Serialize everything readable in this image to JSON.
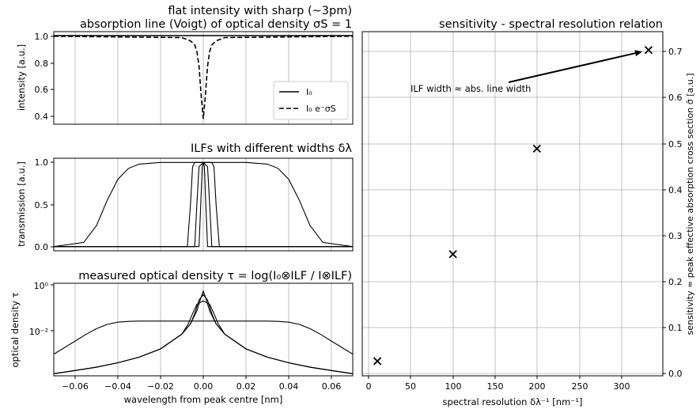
{
  "panels": {
    "a": {
      "title_line1": "flat intensity with sharp (~3pm)",
      "title_line2": "absorption line (Voigt) of optical density σS = 1",
      "ylabel": "intensity [a.u.]",
      "yticks": [
        "1.0",
        "0.8",
        "0.6",
        "0.4"
      ],
      "legend": [
        "I₀",
        "I₀ e⁻σS"
      ]
    },
    "b": {
      "title": "ILFs with different widths δλ",
      "ylabel": "transmission [a.u.]",
      "yticks": [
        "1.0",
        "0.5",
        "0.0"
      ]
    },
    "c": {
      "title": "measured optical density τ = log(I₀⊗ILF / I⊗ILF)",
      "ylabel": "optical density τ",
      "yticks": [
        "10⁰",
        "10⁻²"
      ],
      "xlabel": "wavelength from peak centre [nm]",
      "xticks": [
        "−0.06",
        "−0.04",
        "−0.02",
        "0.00",
        "0.02",
        "0.04",
        "0.06"
      ]
    },
    "d": {
      "title": "sensitivity - spectral resolution relation",
      "xlabel": "spectral resolution δλ⁻¹ [nm⁻¹]",
      "ylabel": "sensitivity ≈ peak effective absorption cross section σ̄ [a.u.]",
      "xticks": [
        "0",
        "50",
        "100",
        "150",
        "200",
        "250",
        "300"
      ],
      "yticks": [
        "0.0",
        "0.1",
        "0.2",
        "0.3",
        "0.4",
        "0.5",
        "0.6",
        "0.7"
      ],
      "annotation": "ILF width ≈ abs. line width"
    }
  },
  "chart_data": [
    {
      "type": "line",
      "title": "flat intensity with sharp (~3pm) absorption line (Voigt) of optical density σS = 1",
      "ylabel": "intensity [a.u.]",
      "xlim": [
        -0.07,
        0.07
      ],
      "ylim": [
        0.33,
        1.03
      ],
      "series": [
        {
          "name": "I₀",
          "style": "solid",
          "x": [
            -0.07,
            0.07
          ],
          "y": [
            1.0,
            1.0
          ]
        },
        {
          "name": "I₀ e⁻σS",
          "style": "dashed",
          "x": [
            -0.07,
            -0.01,
            -0.006,
            -0.004,
            -0.003,
            -0.002,
            -0.001,
            0.0,
            0.001,
            0.002,
            0.003,
            0.004,
            0.006,
            0.01,
            0.07
          ],
          "y": [
            0.995,
            0.985,
            0.96,
            0.93,
            0.88,
            0.77,
            0.55,
            0.37,
            0.55,
            0.77,
            0.88,
            0.93,
            0.96,
            0.985,
            0.995
          ]
        }
      ]
    },
    {
      "type": "line",
      "title": "ILFs with different widths δλ",
      "ylabel": "transmission [a.u.]",
      "xlim": [
        -0.07,
        0.07
      ],
      "ylim": [
        -0.05,
        1.05
      ],
      "series": [
        {
          "style": "solid",
          "x": [
            -0.07,
            -0.056,
            -0.05,
            -0.045,
            -0.04,
            -0.035,
            -0.03,
            -0.02,
            0.0,
            0.02,
            0.03,
            0.035,
            0.04,
            0.045,
            0.05,
            0.056,
            0.07
          ],
          "y": [
            0.0,
            0.05,
            0.25,
            0.55,
            0.8,
            0.93,
            0.98,
            1.0,
            1.0,
            1.0,
            0.98,
            0.93,
            0.8,
            0.55,
            0.25,
            0.05,
            0.0
          ]
        },
        {
          "style": "solid",
          "x": [
            -0.07,
            -0.0075,
            -0.006,
            -0.005,
            -0.004,
            0.0,
            0.004,
            0.005,
            0.006,
            0.0075,
            0.07
          ],
          "y": [
            0.0,
            0.0,
            0.5,
            0.95,
            1.0,
            1.0,
            1.0,
            0.95,
            0.5,
            0.0,
            0.0
          ]
        },
        {
          "style": "solid",
          "x": [
            -0.07,
            -0.004,
            -0.003,
            -0.002,
            0.0,
            0.002,
            0.003,
            0.004,
            0.07
          ],
          "y": [
            0.0,
            0.0,
            0.5,
            0.95,
            1.0,
            0.95,
            0.5,
            0.0,
            0.0
          ]
        },
        {
          "style": "solid",
          "x": [
            -0.07,
            -0.002,
            -0.0012,
            -0.0005,
            0.0,
            0.0005,
            0.0012,
            0.002,
            0.07
          ],
          "y": [
            0.0,
            0.0,
            0.5,
            0.95,
            1.0,
            0.95,
            0.5,
            0.0,
            0.0
          ]
        }
      ]
    },
    {
      "type": "line",
      "title": "measured optical density τ = log(I₀⊗ILF / I⊗ILF)",
      "xlabel": "wavelength from peak centre [nm]",
      "ylabel": "optical density τ",
      "yscale": "log",
      "xlim": [
        -0.07,
        0.07
      ],
      "ylim": [
        8e-05,
        1.5
      ],
      "series": [
        {
          "style": "solid",
          "x": [
            -0.07,
            -0.06,
            -0.05,
            -0.04,
            -0.03,
            -0.02,
            -0.01,
            -0.006,
            -0.003,
            -0.001,
            0.0,
            0.001,
            0.003,
            0.006,
            0.01,
            0.02,
            0.03,
            0.04,
            0.05,
            0.06,
            0.07
          ],
          "y": [
            0.0001,
            0.00014,
            0.0002,
            0.00032,
            0.00058,
            0.0014,
            0.0068,
            0.02,
            0.08,
            0.35,
            0.65,
            0.35,
            0.08,
            0.02,
            0.0068,
            0.0014,
            0.00058,
            0.00032,
            0.0002,
            0.00014,
            0.0001
          ]
        },
        {
          "style": "solid",
          "x": [
            -0.07,
            -0.06,
            -0.05,
            -0.04,
            -0.03,
            -0.02,
            -0.01,
            -0.006,
            -0.004,
            -0.002,
            0.0,
            0.002,
            0.004,
            0.006,
            0.01,
            0.02,
            0.03,
            0.04,
            0.05,
            0.06,
            0.07
          ],
          "y": [
            0.0001,
            0.00014,
            0.0002,
            0.00032,
            0.00058,
            0.0014,
            0.0068,
            0.02,
            0.06,
            0.25,
            0.45,
            0.25,
            0.06,
            0.02,
            0.0068,
            0.0014,
            0.00058,
            0.00032,
            0.0002,
            0.00014,
            0.0001
          ]
        },
        {
          "style": "solid",
          "x": [
            -0.07,
            -0.06,
            -0.05,
            -0.04,
            -0.03,
            -0.02,
            -0.01,
            -0.007,
            -0.005,
            -0.003,
            0.0,
            0.003,
            0.005,
            0.007,
            0.01,
            0.02,
            0.03,
            0.04,
            0.05,
            0.06,
            0.07
          ],
          "y": [
            0.0001,
            0.00014,
            0.0002,
            0.00032,
            0.00058,
            0.0014,
            0.0068,
            0.02,
            0.06,
            0.16,
            0.23,
            0.16,
            0.06,
            0.02,
            0.0068,
            0.0014,
            0.00058,
            0.00032,
            0.0002,
            0.00014,
            0.0001
          ]
        },
        {
          "style": "solid",
          "x": [
            -0.07,
            -0.065,
            -0.06,
            -0.055,
            -0.05,
            -0.045,
            -0.04,
            -0.035,
            -0.03,
            0.0,
            0.03,
            0.035,
            0.04,
            0.045,
            0.05,
            0.055,
            0.06,
            0.065,
            0.07
          ],
          "y": [
            0.0008,
            0.0016,
            0.0032,
            0.0065,
            0.012,
            0.019,
            0.024,
            0.026,
            0.027,
            0.027,
            0.027,
            0.026,
            0.024,
            0.019,
            0.012,
            0.0065,
            0.0032,
            0.0016,
            0.0008
          ]
        }
      ]
    },
    {
      "type": "scatter",
      "title": "sensitivity - spectral resolution relation",
      "xlabel": "spectral resolution δλ⁻¹ [nm⁻¹]",
      "ylabel": "sensitivity ≈ peak effective absorption cross section σ̄ [a.u.]",
      "xlim": [
        -8,
        350
      ],
      "ylim": [
        -0.005,
        0.745
      ],
      "x": [
        10,
        100,
        200,
        333
      ],
      "y": [
        0.027,
        0.26,
        0.49,
        0.705
      ],
      "annotation": {
        "text": "ILF width ≈ abs. line width",
        "arrow_to": [
          333,
          0.705
        ]
      }
    }
  ]
}
